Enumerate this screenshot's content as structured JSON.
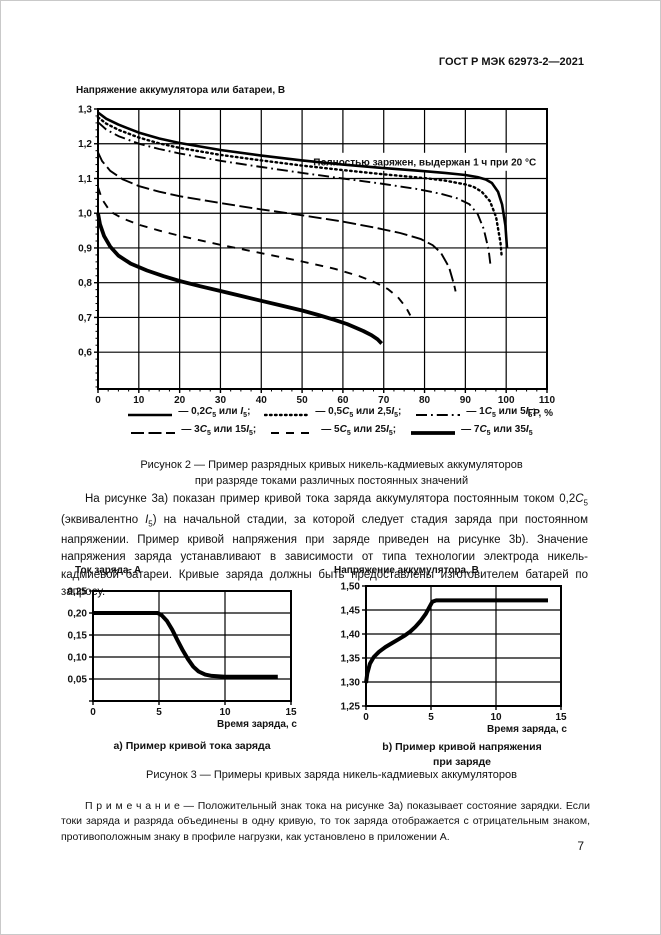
{
  "page": {
    "header": "ГОСТ Р МЭК 62973-2—2021",
    "number": "7"
  },
  "figure2": {
    "ylabel": "Напряжение аккумулятора или батареи, В",
    "xlabel": "ГР, %",
    "annotation": "Полностью заряжен, выдержан 1 ч при 20 °С",
    "legend": {
      "rows": [
        [
          0,
          1,
          2
        ],
        [
          3,
          4,
          5
        ]
      ],
      "items": [
        {
          "label": "— 0,2*C*_5_ или *I*_5_;",
          "style": "solid"
        },
        {
          "label": "— 0,5*C*_5_ или 2,5*I*_5_;",
          "style": "dotted"
        },
        {
          "label": "— 1*C*_5_ или 5*I*_5_;",
          "style": "dashdot"
        },
        {
          "label": "— 3*C*_5_ или 15*I*_5_;",
          "style": "longdash"
        },
        {
          "label": "— 5*C*_5_ или 25*I*_5_;",
          "style": "dash"
        },
        {
          "label": "— 7*C*_5_ или 35*I*_5_",
          "style": "solid2"
        }
      ]
    },
    "caption_line1": "Рисунок 2 — Пример разрядных кривых никель-кадмиевых аккумуляторов",
    "caption_line2": "при разряде токами различных постоянных значений"
  },
  "paragraph": "На рисунке 3а) показан пример кривой тока заряда аккумулятора постоянным током 0,2*C*_5_ (эквивалентно *I*_5_) на начальной стадии, за которой следует стадия заряда при постоянном напряжении. Пример кривой напряжения при заряде приведен на рисунке 3b). Значение напряжения заряда устанавливают в зависимости от типа технологии электрода никель-кадмиевой батареи. Кривые заряда должны быть предоставлены изготовителем батарей по запросу.",
  "figure3": {
    "caption": "Рисунок 3 — Примеры кривых заряда никель-кадмиевых аккумуляторов",
    "a": {
      "ylabel": "Ток заряда, А",
      "xlabel": "Время заряда, с",
      "caption": "а) Пример кривой тока заряда"
    },
    "b": {
      "ylabel": "Напряжение аккумулятора, В",
      "xlabel": "Время заряда, с",
      "caption_line1": "b) Пример кривой напряжения",
      "caption_line2": "при заряде"
    }
  },
  "note": "П р и м е ч а н и е  — Положительный знак тока на рисунке 3а) показывает состояние зарядки. Если токи заряда и разряда объединены в одну кривую, то ток заряда отображается с отрицательным знаком, противоположным знаку в профиле нагрузки, как установлено в приложении А.",
  "chart_data": [
    {
      "type": "line",
      "title": "Пример разрядных кривых никель-кадмиевых аккумуляторов",
      "xlabel": "ГР, %",
      "ylabel": "Напряжение аккумулятора или батареи, В",
      "xlim": [
        0,
        110
      ],
      "ylim": [
        0.494,
        1.3
      ],
      "xminor": 2.5,
      "yminor": 0.02,
      "grid": true,
      "annotation": {
        "text": "Полностью заряжен, выдержан 1 ч при 20 °С",
        "x1": 50.8,
        "x2": 109.3,
        "y": 1.148
      },
      "xticks": [
        {
          "v": 0,
          "l": "0"
        },
        {
          "v": 10,
          "l": "10"
        },
        {
          "v": 20,
          "l": "20"
        },
        {
          "v": 30,
          "l": "30"
        },
        {
          "v": 40,
          "l": "40"
        },
        {
          "v": 50,
          "l": "50"
        },
        {
          "v": 60,
          "l": "60"
        },
        {
          "v": 70,
          "l": "70"
        },
        {
          "v": 80,
          "l": "80"
        },
        {
          "v": 90,
          "l": "90"
        },
        {
          "v": 100,
          "l": "100"
        },
        {
          "v": 110,
          "l": "110"
        }
      ],
      "yticks": [
        {
          "v": 1.3,
          "l": "1,3"
        },
        {
          "v": 1.2,
          "l": "1,2"
        },
        {
          "v": 1.1,
          "l": "1,1"
        },
        {
          "v": 1.0,
          "l": "1,0"
        },
        {
          "v": 0.9,
          "l": "0,9"
        },
        {
          "v": 0.8,
          "l": "0,8"
        },
        {
          "v": 0.7,
          "l": "0,7"
        },
        {
          "v": 0.6,
          "l": "0,6"
        }
      ],
      "series": [
        {
          "name": "0,2C5 или I5",
          "style": "solid",
          "points": [
            [
              0,
              1.29
            ],
            [
              2,
              1.272
            ],
            [
              5,
              1.255
            ],
            [
              10,
              1.232
            ],
            [
              15,
              1.215
            ],
            [
              20,
              1.202
            ],
            [
              30,
              1.182
            ],
            [
              40,
              1.166
            ],
            [
              50,
              1.152
            ],
            [
              60,
              1.14
            ],
            [
              70,
              1.13
            ],
            [
              80,
              1.121
            ],
            [
              85,
              1.116
            ],
            [
              90,
              1.11
            ],
            [
              93,
              1.104
            ],
            [
              95,
              1.097
            ],
            [
              96.5,
              1.087
            ],
            [
              98,
              1.062
            ],
            [
              99,
              1.025
            ],
            [
              99.8,
              0.965
            ],
            [
              100.2,
              0.9
            ]
          ]
        },
        {
          "name": "0,5C5 или 2,5I5",
          "style": "dotted",
          "points": [
            [
              0,
              1.276
            ],
            [
              2,
              1.258
            ],
            [
              5,
              1.24
            ],
            [
              10,
              1.218
            ],
            [
              15,
              1.201
            ],
            [
              20,
              1.188
            ],
            [
              30,
              1.168
            ],
            [
              40,
              1.152
            ],
            [
              50,
              1.137
            ],
            [
              60,
              1.124
            ],
            [
              70,
              1.112
            ],
            [
              80,
              1.101
            ],
            [
              85,
              1.094
            ],
            [
              90,
              1.083
            ],
            [
              92,
              1.076
            ],
            [
              94,
              1.062
            ],
            [
              96,
              1.035
            ],
            [
              97.5,
              0.99
            ],
            [
              98.6,
              0.915
            ],
            [
              98.9,
              0.875
            ]
          ]
        },
        {
          "name": "1C5 или 5I5",
          "style": "dashdot",
          "points": [
            [
              0,
              1.262
            ],
            [
              2,
              1.241
            ],
            [
              5,
              1.222
            ],
            [
              10,
              1.2
            ],
            [
              15,
              1.185
            ],
            [
              20,
              1.172
            ],
            [
              30,
              1.151
            ],
            [
              40,
              1.133
            ],
            [
              50,
              1.116
            ],
            [
              60,
              1.1
            ],
            [
              70,
              1.084
            ],
            [
              78,
              1.07
            ],
            [
              84,
              1.056
            ],
            [
              88,
              1.043
            ],
            [
              91,
              1.026
            ],
            [
              93,
              0.998
            ],
            [
              94.5,
              0.955
            ],
            [
              95.7,
              0.895
            ],
            [
              96.1,
              0.855
            ]
          ]
        },
        {
          "name": "3C5 или 15I5",
          "style": "longdash",
          "points": [
            [
              0,
              1.175
            ],
            [
              1,
              1.15
            ],
            [
              3,
              1.122
            ],
            [
              6,
              1.098
            ],
            [
              10,
              1.078
            ],
            [
              15,
              1.062
            ],
            [
              20,
              1.049
            ],
            [
              30,
              1.029
            ],
            [
              40,
              1.011
            ],
            [
              50,
              0.994
            ],
            [
              60,
              0.976
            ],
            [
              68,
              0.958
            ],
            [
              74,
              0.943
            ],
            [
              79,
              0.926
            ],
            [
              82,
              0.908
            ],
            [
              84,
              0.886
            ],
            [
              86,
              0.845
            ],
            [
              87.3,
              0.792
            ],
            [
              87.6,
              0.775
            ]
          ]
        },
        {
          "name": "5C5 или 25I5",
          "style": "dash",
          "points": [
            [
              0,
              1.075
            ],
            [
              1,
              1.04
            ],
            [
              3,
              1.005
            ],
            [
              6,
              0.985
            ],
            [
              10,
              0.967
            ],
            [
              15,
              0.95
            ],
            [
              20,
              0.935
            ],
            [
              30,
              0.909
            ],
            [
              40,
              0.885
            ],
            [
              50,
              0.861
            ],
            [
              58,
              0.84
            ],
            [
              64,
              0.819
            ],
            [
              68,
              0.8
            ],
            [
              71,
              0.782
            ],
            [
              73.5,
              0.758
            ],
            [
              75.5,
              0.728
            ],
            [
              76.5,
              0.706
            ]
          ]
        },
        {
          "name": "7C5 или 35I5",
          "style": "solid2",
          "points": [
            [
              0,
              1.0
            ],
            [
              0.5,
              0.968
            ],
            [
              1.5,
              0.934
            ],
            [
              3,
              0.904
            ],
            [
              5,
              0.878
            ],
            [
              8,
              0.855
            ],
            [
              12,
              0.835
            ],
            [
              16,
              0.819
            ],
            [
              20,
              0.805
            ],
            [
              25,
              0.79
            ],
            [
              30,
              0.776
            ],
            [
              35,
              0.762
            ],
            [
              40,
              0.748
            ],
            [
              45,
              0.734
            ],
            [
              50,
              0.72
            ],
            [
              54,
              0.707
            ],
            [
              58,
              0.693
            ],
            [
              61,
              0.681
            ],
            [
              63,
              0.671
            ],
            [
              65,
              0.661
            ],
            [
              67,
              0.649
            ],
            [
              68.5,
              0.637
            ],
            [
              69.5,
              0.625
            ]
          ]
        }
      ]
    },
    {
      "type": "line",
      "title": "а) Пример кривой тока заряда",
      "xlabel": "Время заряда, с",
      "ylabel": "Ток заряда, А",
      "xlim": [
        0,
        15
      ],
      "ylim": [
        0,
        0.25
      ],
      "grid": true,
      "xticks": [
        {
          "v": 0,
          "l": "0"
        },
        {
          "v": 5,
          "l": "5"
        },
        {
          "v": 10,
          "l": "10"
        },
        {
          "v": 15,
          "l": "15"
        }
      ],
      "yticks": [
        {
          "v": 0.25,
          "l": "0,25"
        },
        {
          "v": 0.2,
          "l": "0,20"
        },
        {
          "v": 0.15,
          "l": "0,15"
        },
        {
          "v": 0.1,
          "l": "0,10"
        },
        {
          "v": 0.05,
          "l": "0,05"
        },
        {
          "v": 0,
          "l": ""
        }
      ],
      "series": [
        {
          "name": "ток заряда",
          "style": "solid3",
          "points": [
            [
              0,
              0.2
            ],
            [
              4.9,
              0.2
            ],
            [
              5.2,
              0.195
            ],
            [
              5.6,
              0.182
            ],
            [
              6,
              0.162
            ],
            [
              6.4,
              0.138
            ],
            [
              6.8,
              0.115
            ],
            [
              7.2,
              0.095
            ],
            [
              7.6,
              0.078
            ],
            [
              8,
              0.067
            ],
            [
              8.5,
              0.06
            ],
            [
              9,
              0.057
            ],
            [
              10,
              0.055
            ],
            [
              14,
              0.055
            ]
          ]
        }
      ]
    },
    {
      "type": "line",
      "title": "b) Пример кривой напряжения при заряде",
      "xlabel": "Время заряда, с",
      "ylabel": "Напряжение аккумулятора, В",
      "xlim": [
        0,
        15
      ],
      "ylim": [
        1.25,
        1.5
      ],
      "grid": true,
      "xticks": [
        {
          "v": 0,
          "l": "0"
        },
        {
          "v": 5,
          "l": "5"
        },
        {
          "v": 10,
          "l": "10"
        },
        {
          "v": 15,
          "l": "15"
        }
      ],
      "yticks": [
        {
          "v": 1.5,
          "l": "1,50"
        },
        {
          "v": 1.45,
          "l": "1,45"
        },
        {
          "v": 1.4,
          "l": "1,40"
        },
        {
          "v": 1.35,
          "l": "1,35"
        },
        {
          "v": 1.3,
          "l": "1,30"
        },
        {
          "v": 1.25,
          "l": "1,25"
        }
      ],
      "series": [
        {
          "name": "напряжение при заряде",
          "style": "solid3",
          "points": [
            [
              0,
              1.298
            ],
            [
              0.1,
              1.318
            ],
            [
              0.3,
              1.338
            ],
            [
              0.6,
              1.352
            ],
            [
              1,
              1.363
            ],
            [
              1.5,
              1.373
            ],
            [
              2,
              1.381
            ],
            [
              2.5,
              1.389
            ],
            [
              3,
              1.397
            ],
            [
              3.4,
              1.405
            ],
            [
              3.8,
              1.415
            ],
            [
              4.2,
              1.427
            ],
            [
              4.6,
              1.442
            ],
            [
              4.9,
              1.457
            ],
            [
              5.1,
              1.467
            ],
            [
              5.4,
              1.47
            ],
            [
              14,
              1.47
            ]
          ]
        }
      ]
    }
  ]
}
